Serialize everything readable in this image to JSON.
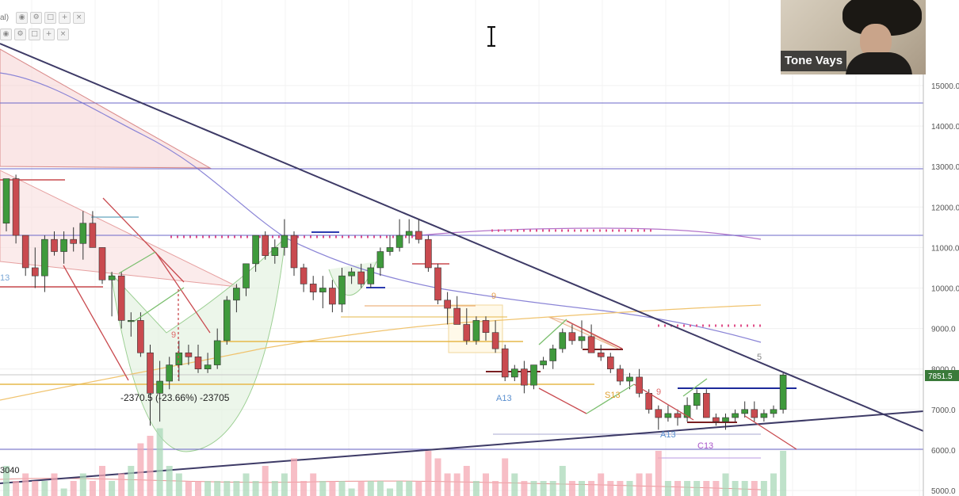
{
  "toolbar": {
    "label": "al)",
    "icons": [
      "settings-icon",
      "visibility-icon",
      "square-icon",
      "plus-icon",
      "close-icon"
    ]
  },
  "webcam": {
    "name": "Tone Vays"
  },
  "axis": {
    "price_labels": [
      "15000.0",
      "14000.0",
      "13000.0",
      "12000.0",
      "11000.0",
      "10000.0",
      "9000.0",
      "8000.0",
      "7000.0",
      "6000.0",
      "5000.0"
    ],
    "current_price": "7851.5"
  },
  "annotations": {
    "measure": "-2370.5 (-23.66%) -23705",
    "volume_label": "3040",
    "seq_left": "13",
    "a13_first": "A13",
    "a13_second": "A13",
    "s13": "S13",
    "c13": "C13",
    "nine_left": "9",
    "nine_right": "9",
    "nine_mid": "9",
    "five": "5"
  },
  "colors": {
    "up": "#3f9a3c",
    "down": "#c94a4f",
    "trendline": "#3d3a66",
    "resistance": "#6b67c8",
    "gold": "#e6b84a",
    "pink_dots": "#e0508a",
    "current_tag": "#3a7a3a"
  },
  "chart_data": {
    "type": "candlestick",
    "y_range": [
      5000,
      15400
    ],
    "candles": [
      [
        11600,
        12700,
        11400,
        12700
      ],
      [
        12700,
        12800,
        11100,
        11300
      ],
      [
        11300,
        11300,
        10300,
        10500
      ],
      [
        10500,
        11000,
        10000,
        10300
      ],
      [
        10300,
        11300,
        9900,
        11200
      ],
      [
        11200,
        11400,
        10800,
        10900
      ],
      [
        10900,
        11400,
        10600,
        11200
      ],
      [
        11200,
        11500,
        10900,
        11100
      ],
      [
        11100,
        11900,
        10700,
        11600
      ],
      [
        11600,
        11900,
        11000,
        11000
      ],
      [
        11000,
        11000,
        10100,
        10200
      ],
      [
        10200,
        10400,
        9300,
        10300
      ],
      [
        10300,
        10400,
        9000,
        9200
      ],
      [
        9200,
        9400,
        8800,
        9200
      ],
      [
        9200,
        9400,
        8300,
        8400
      ],
      [
        8400,
        8600,
        6600,
        7400
      ],
      [
        7400,
        8200,
        6700,
        7700
      ],
      [
        7700,
        8300,
        7500,
        8100
      ],
      [
        8100,
        8700,
        7700,
        8400
      ],
      [
        8400,
        8600,
        8100,
        8300
      ],
      [
        8300,
        8600,
        7900,
        8000
      ],
      [
        8000,
        8400,
        7900,
        8100
      ],
      [
        8100,
        9000,
        8000,
        8700
      ],
      [
        8700,
        9800,
        8600,
        9700
      ],
      [
        9700,
        10100,
        9400,
        10000
      ],
      [
        10000,
        10600,
        9800,
        10600
      ],
      [
        10600,
        11300,
        10400,
        11300
      ],
      [
        11300,
        11400,
        10700,
        10800
      ],
      [
        10800,
        11200,
        10600,
        11000
      ],
      [
        11000,
        11700,
        10800,
        11300
      ],
      [
        11300,
        11400,
        10300,
        10500
      ],
      [
        10500,
        10600,
        9900,
        10100
      ],
      [
        10100,
        10300,
        9700,
        9900
      ],
      [
        9900,
        10300,
        9500,
        10000
      ],
      [
        10000,
        10200,
        9400,
        9600
      ],
      [
        9600,
        10500,
        9400,
        10300
      ],
      [
        10300,
        10500,
        10100,
        10400
      ],
      [
        10400,
        10600,
        10000,
        10100
      ],
      [
        10100,
        10600,
        10000,
        10500
      ],
      [
        10500,
        11000,
        10300,
        10900
      ],
      [
        10900,
        11300,
        10800,
        11000
      ],
      [
        11000,
        11700,
        10900,
        11300
      ],
      [
        11300,
        11700,
        11100,
        11400
      ],
      [
        11400,
        11700,
        11100,
        11200
      ],
      [
        11200,
        11300,
        10400,
        10500
      ],
      [
        10500,
        10600,
        9600,
        9700
      ],
      [
        9700,
        9900,
        9100,
        9500
      ],
      [
        9500,
        9800,
        9100,
        9100
      ],
      [
        9100,
        9500,
        8600,
        8700
      ],
      [
        8700,
        9300,
        8600,
        9200
      ],
      [
        9200,
        9300,
        8700,
        8900
      ],
      [
        8900,
        9200,
        8400,
        8500
      ],
      [
        8500,
        8600,
        7700,
        7800
      ],
      [
        7800,
        8100,
        7700,
        8000
      ],
      [
        8000,
        8200,
        7400,
        7600
      ],
      [
        7600,
        8100,
        7500,
        8100
      ],
      [
        8100,
        8300,
        8000,
        8200
      ],
      [
        8200,
        8600,
        8000,
        8500
      ],
      [
        8500,
        9000,
        8400,
        8900
      ],
      [
        8900,
        9100,
        8600,
        8700
      ],
      [
        8700,
        9200,
        8500,
        8800
      ],
      [
        8800,
        9100,
        8400,
        8400
      ],
      [
        8400,
        8600,
        8200,
        8300
      ],
      [
        8300,
        8400,
        7900,
        8000
      ],
      [
        8000,
        8100,
        7600,
        7700
      ],
      [
        7700,
        7900,
        7500,
        7800
      ],
      [
        7800,
        8000,
        7300,
        7400
      ],
      [
        7400,
        7500,
        6900,
        7000
      ],
      [
        7000,
        7100,
        6500,
        6800
      ],
      [
        6800,
        7100,
        6700,
        6900
      ],
      [
        6900,
        7000,
        6600,
        6800
      ],
      [
        6800,
        7300,
        6700,
        7100
      ],
      [
        7100,
        7500,
        7000,
        7400
      ],
      [
        7400,
        7500,
        6800,
        6800
      ],
      [
        6800,
        6900,
        6600,
        6700
      ],
      [
        6700,
        6900,
        6500,
        6800
      ],
      [
        6800,
        7000,
        6700,
        6900
      ],
      [
        6900,
        7200,
        6800,
        7000
      ],
      [
        7000,
        7200,
        6700,
        6800
      ],
      [
        6800,
        7000,
        6700,
        6900
      ],
      [
        6900,
        7100,
        6800,
        7000
      ],
      [
        7000,
        7900,
        6900,
        7850
      ]
    ],
    "volumes": [
      0.4,
      0.2,
      0.3,
      0.2,
      0.2,
      0.3,
      0.1,
      0.2,
      0.3,
      0.2,
      0.4,
      0.2,
      0.3,
      0.4,
      0.7,
      0.8,
      0.9,
      0.4,
      0.3,
      0.2,
      0.2,
      0.2,
      0.2,
      0.2,
      0.2,
      0.3,
      0.2,
      0.4,
      0.2,
      0.3,
      0.5,
      0.2,
      0.3,
      0.2,
      0.2,
      0.2,
      0.1,
      0.2,
      0.2,
      0.2,
      0.1,
      0.2,
      0.2,
      0.2,
      0.6,
      0.5,
      0.3,
      0.3,
      0.4,
      0.2,
      0.3,
      0.2,
      0.5,
      0.3,
      0.2,
      0.2,
      0.2,
      0.2,
      0.4,
      0.2,
      0.2,
      0.2,
      0.3,
      0.2,
      0.2,
      0.2,
      0.3,
      0.3,
      0.6,
      0.2,
      0.2,
      0.2,
      0.2,
      0.2,
      0.2,
      0.3,
      0.2,
      0.2,
      0.2,
      0.2,
      0.3,
      0.6
    ]
  }
}
